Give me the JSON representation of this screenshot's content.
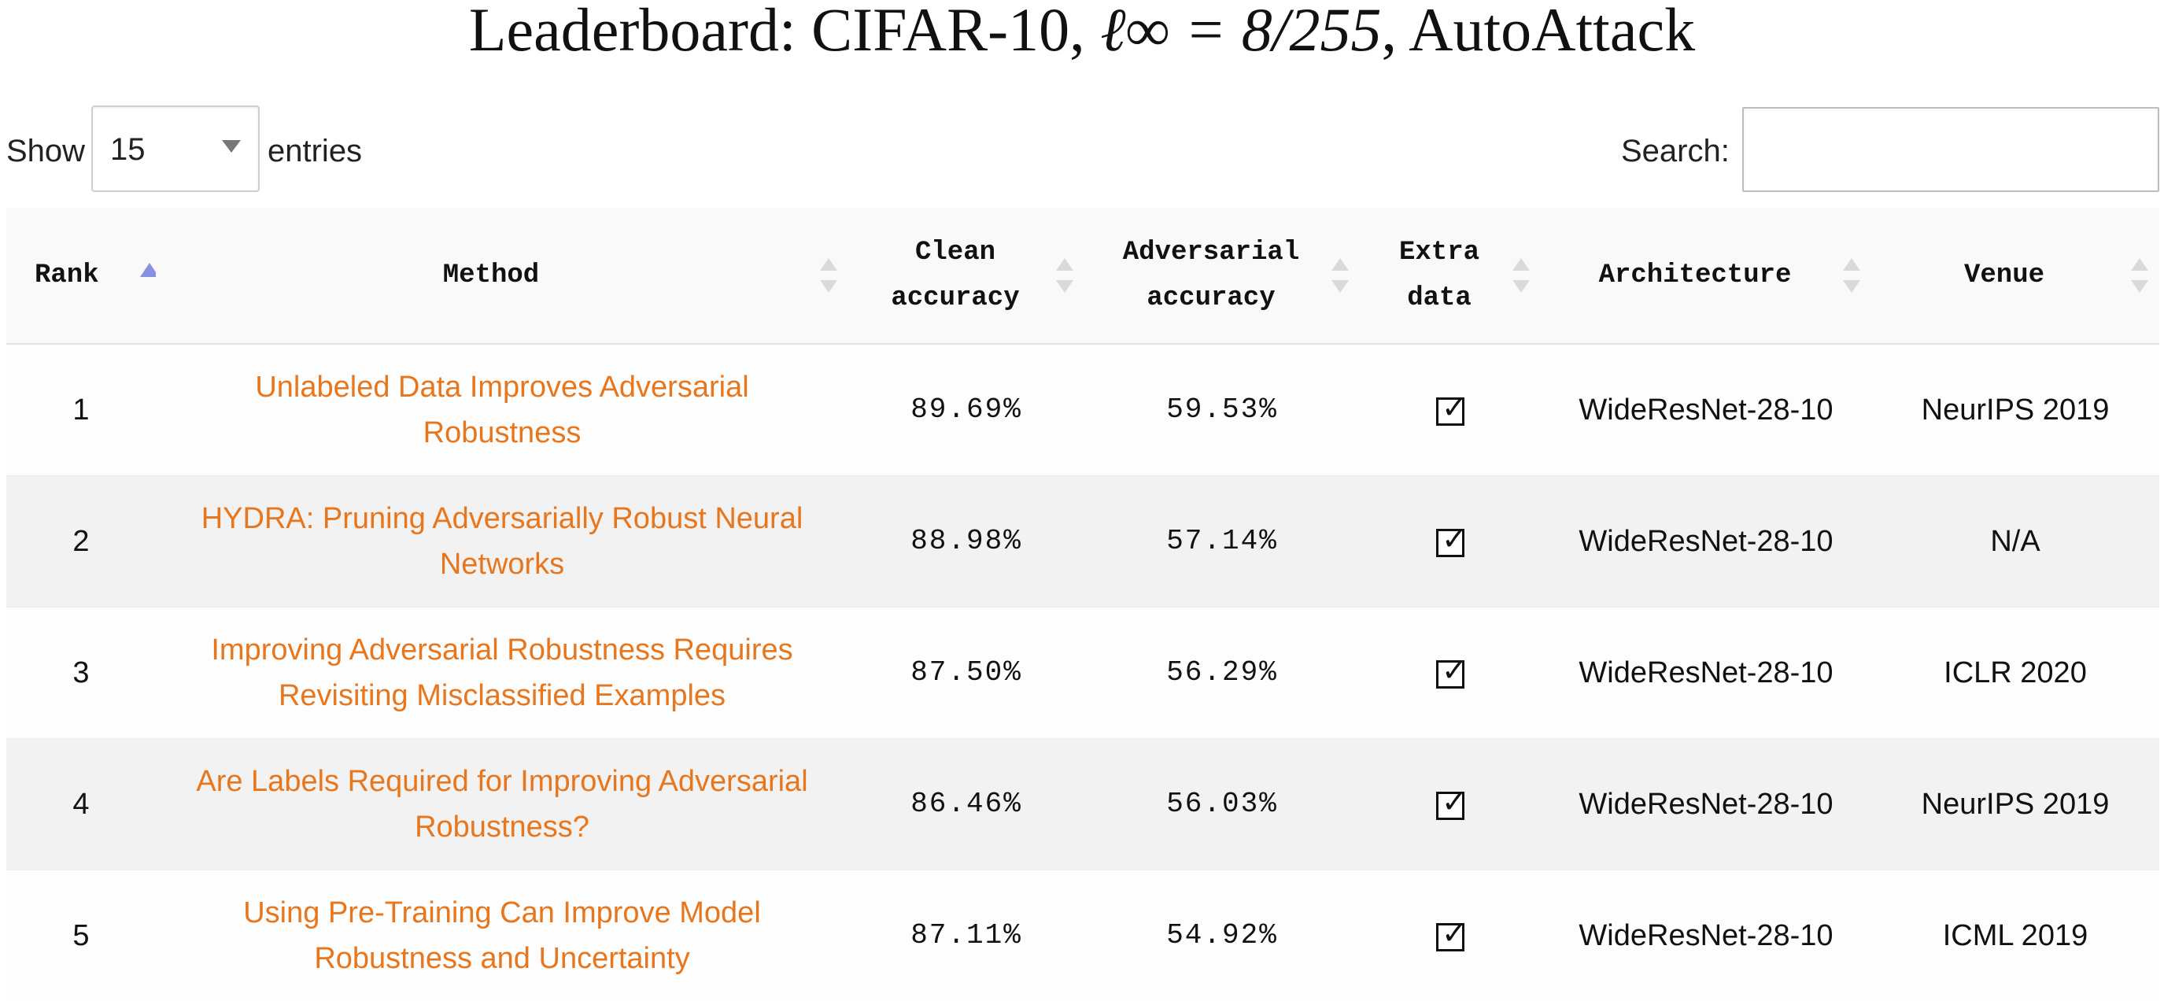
{
  "title": {
    "prefix": "Leaderboard: CIFAR-10, ",
    "math": "ℓ∞ = 8/255",
    "suffix": ", AutoAttack"
  },
  "controls": {
    "show_label": "Show",
    "page_size": "15",
    "entries_label": "entries",
    "search_label": "Search:",
    "search_value": ""
  },
  "table": {
    "columns": [
      {
        "label": "Rank",
        "sorted": "ascending"
      },
      {
        "label": "Method",
        "sorted": "none"
      },
      {
        "label": "Clean accuracy",
        "sorted": "none"
      },
      {
        "label": "Adversarial accuracy",
        "sorted": "none"
      },
      {
        "label": "Extra data",
        "sorted": "none"
      },
      {
        "label": "Architecture",
        "sorted": "none"
      },
      {
        "label": "Venue",
        "sorted": "none"
      }
    ],
    "rows": [
      {
        "rank": "1",
        "method": "Unlabeled Data Improves Adversarial Robustness",
        "clean": "89.69%",
        "adversarial": "59.53%",
        "extra_data": "☑",
        "architecture": "WideResNet-28-10",
        "venue": "NeurIPS 2019"
      },
      {
        "rank": "2",
        "method": "HYDRA: Pruning Adversarially Robust Neural Networks",
        "clean": "88.98%",
        "adversarial": "57.14%",
        "extra_data": "☑",
        "architecture": "WideResNet-28-10",
        "venue": "N/A"
      },
      {
        "rank": "3",
        "method": "Improving Adversarial Robustness Requires Revisiting Misclassified Examples",
        "clean": "87.50%",
        "adversarial": "56.29%",
        "extra_data": "☑",
        "architecture": "WideResNet-28-10",
        "venue": "ICLR 2020"
      },
      {
        "rank": "4",
        "method": "Are Labels Required for Improving Adversarial Robustness?",
        "clean": "86.46%",
        "adversarial": "56.03%",
        "extra_data": "☑",
        "architecture": "WideResNet-28-10",
        "venue": "NeurIPS 2019"
      },
      {
        "rank": "5",
        "method": "Using Pre-Training Can Improve Model Robustness and Uncertainty",
        "clean": "87.11%",
        "adversarial": "54.92%",
        "extra_data": "☑",
        "architecture": "WideResNet-28-10",
        "venue": "ICML 2019"
      }
    ]
  },
  "colors": {
    "link": "#e8761c",
    "sort_active": "#8890e0",
    "sort_inactive": "#dadada",
    "row_even": "#f2f2f2"
  },
  "icons": {
    "sort_ascending": "sort-ascending-icon",
    "sort_both": "sort-both-icon",
    "dropdown_arrow": "dropdown-arrow-icon",
    "checkbox_checked": "checkbox-checked-icon"
  }
}
